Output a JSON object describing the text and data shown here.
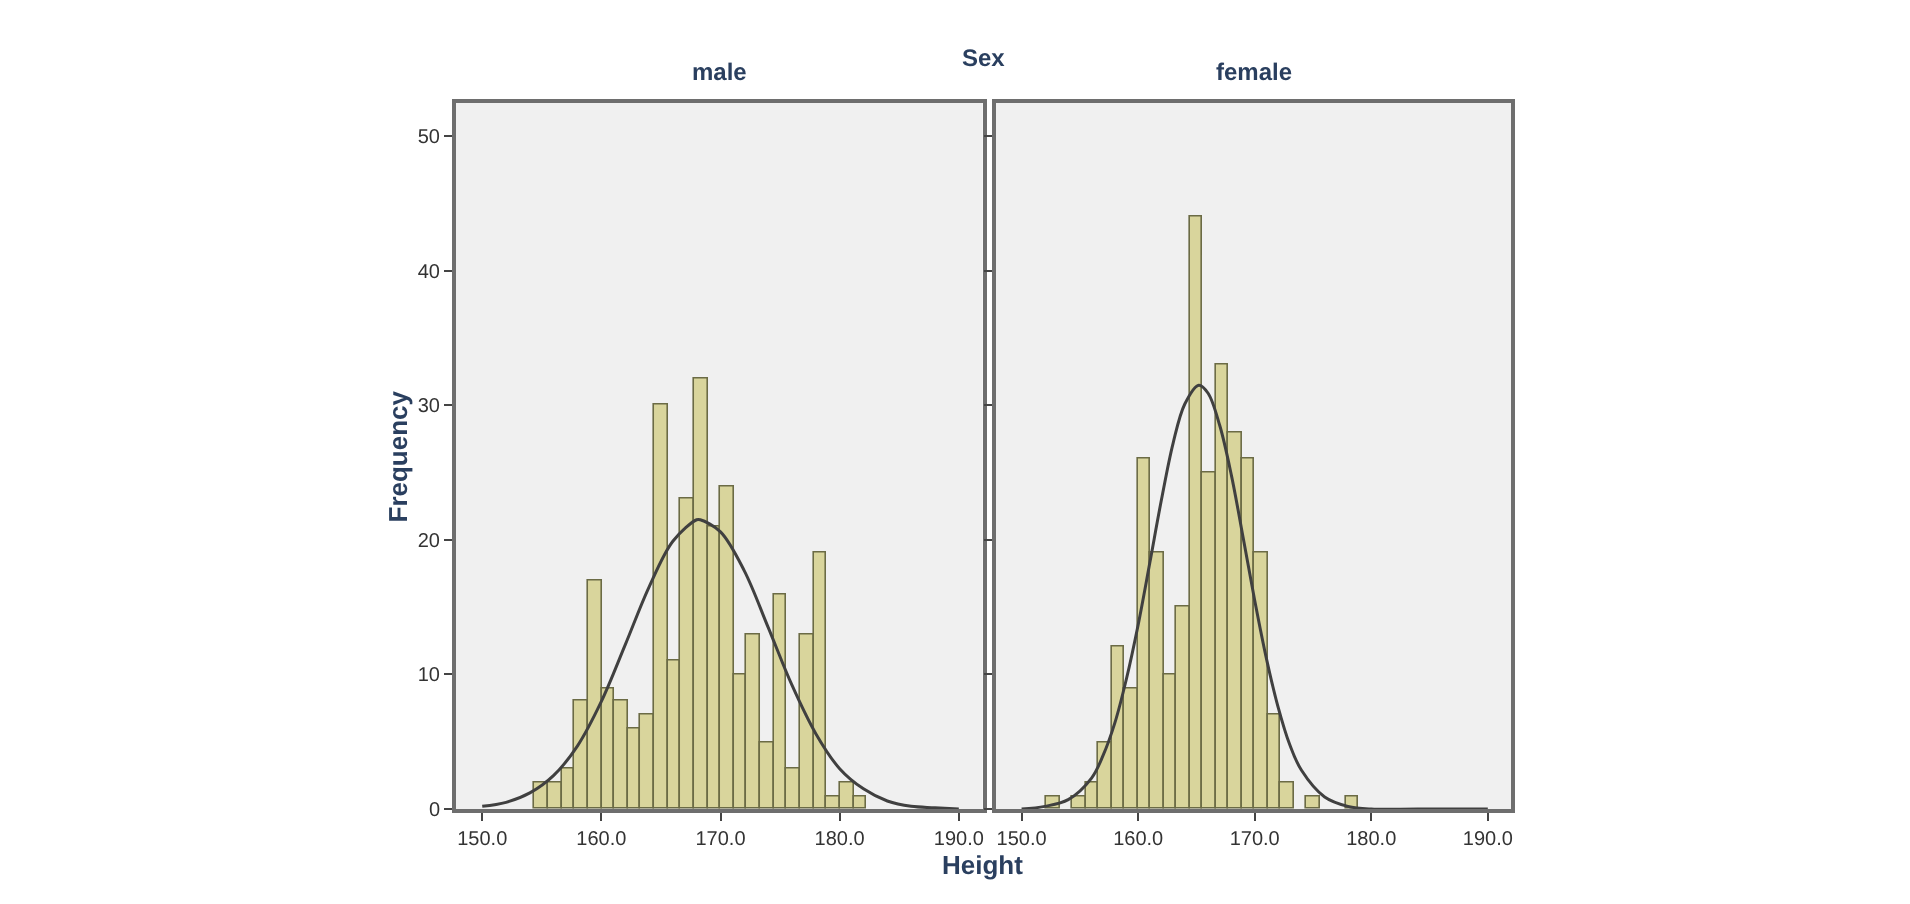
{
  "chart_data": [
    {
      "type": "histogram",
      "title": "Sex",
      "subtitle": "male",
      "xlabel": "Height",
      "ylabel": "Frequency",
      "color": "#d9d59c",
      "bins": [
        154.4,
        155.51,
        156.63,
        157.74,
        158.86,
        159.97,
        161.08,
        162.2,
        163.31,
        164.43,
        165.54,
        166.65,
        167.77,
        168.88,
        170.0,
        171.11,
        172.22,
        173.34,
        174.45,
        175.57,
        176.68,
        177.79,
        178.91,
        180.02,
        181.14,
        182.25
      ],
      "values": [
        2,
        2,
        3,
        8,
        17,
        9,
        8,
        6,
        7,
        30,
        11,
        23,
        32,
        21,
        24,
        10,
        13,
        5,
        16,
        3,
        13,
        19,
        1,
        2,
        1
      ],
      "series": [
        {
          "type": "line",
          "color": "#404040",
          "x": [
            150,
            152,
            154,
            156,
            158,
            160,
            162,
            164,
            166,
            168,
            168.3,
            170,
            172,
            174,
            176,
            178,
            180,
            182,
            184,
            186,
            188,
            190
          ],
          "values": [
            0.2,
            0.5,
            1.2,
            2.5,
            4.7,
            8.0,
            12.2,
            16.5,
            19.9,
            21.5,
            21.5,
            20.6,
            17.7,
            13.5,
            9.2,
            5.6,
            3.0,
            1.5,
            0.6,
            0.2,
            0.1,
            0.0
          ]
        }
      ],
      "xlim": [
        147.8,
        192.0
      ],
      "ylim": [
        0,
        52.5
      ],
      "xticks": [
        {
          "value": 150,
          "label": "150.0"
        },
        {
          "value": 160,
          "label": "160.0"
        },
        {
          "value": 170,
          "label": "170.0"
        },
        {
          "value": 180,
          "label": "180.0"
        },
        {
          "value": 190,
          "label": "190.0"
        }
      ],
      "yticks": [
        0,
        10,
        20,
        30,
        40,
        50
      ],
      "grid": false
    },
    {
      "type": "histogram",
      "title": "female",
      "color": "#d9d59c",
      "bins": [
        152.17,
        153.28,
        154.4,
        155.51,
        156.63,
        157.74,
        158.86,
        159.97,
        161.08,
        162.2,
        163.31,
        164.43,
        165.54,
        166.65,
        167.77,
        168.88,
        170.0,
        171.11,
        172.22,
        173.34,
        174.45,
        175.57,
        176.68,
        177.79,
        178.91
      ],
      "values": [
        1,
        0,
        1,
        2,
        5,
        12,
        9,
        26,
        19,
        10,
        15,
        44,
        25,
        33,
        28,
        26,
        19,
        7,
        2,
        0,
        1,
        0,
        0,
        1
      ],
      "series": [
        {
          "type": "line",
          "color": "#404040",
          "x": [
            150,
            152,
            154,
            156,
            157,
            158,
            159,
            160,
            161,
            162,
            163,
            164,
            165.2,
            166,
            167,
            168,
            169,
            170,
            171,
            172,
            173,
            174,
            176,
            178,
            180,
            184,
            190
          ],
          "values": [
            0.0,
            0.2,
            0.7,
            2.3,
            4.0,
            6.4,
            9.7,
            13.7,
            18.3,
            23.0,
            27.2,
            30.1,
            31.5,
            30.9,
            28.5,
            24.8,
            20.2,
            15.5,
            11.2,
            7.6,
            4.8,
            2.9,
            0.9,
            0.2,
            0.0,
            0.0,
            0.0
          ]
        }
      ],
      "xlim": [
        147.8,
        192.0
      ],
      "ylim": [
        0,
        52.5
      ],
      "xticks": [
        {
          "value": 150,
          "label": "150.0"
        },
        {
          "value": 160,
          "label": "160.0"
        },
        {
          "value": 170,
          "label": "170.0"
        },
        {
          "value": 180,
          "label": "180.0"
        },
        {
          "value": 190,
          "label": "190.0"
        }
      ],
      "yticks": [
        0,
        10,
        20,
        30,
        40,
        50
      ],
      "tick_labels": "x",
      "grid": false
    }
  ]
}
